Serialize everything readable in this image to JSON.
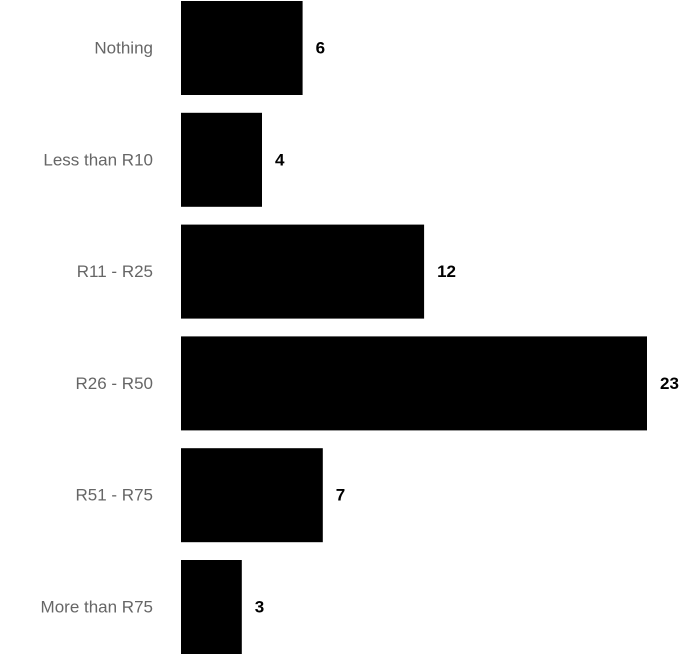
{
  "colors": {
    "bar": "#000000",
    "category_label": "#666666",
    "value_label": "#000000",
    "background": "#ffffff"
  },
  "chart_data": {
    "type": "bar",
    "orientation": "horizontal",
    "categories": [
      "Nothing",
      "Less than R10",
      "R11 - R25",
      "R26 - R50",
      "R51 - R75",
      "More than R75"
    ],
    "values": [
      6,
      4,
      12,
      23,
      7,
      3
    ],
    "data_labels": [
      "6",
      "4",
      "12",
      "23",
      "7",
      "3"
    ],
    "xlim": [
      0,
      23
    ],
    "grid": false,
    "legend": "none"
  }
}
